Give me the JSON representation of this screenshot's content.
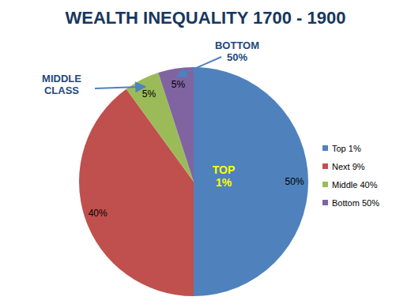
{
  "chart_data": {
    "type": "pie",
    "title": "WEALTH INEQUALITY 1700 - 1900",
    "categories": [
      "Top 1%",
      "Next 9%",
      "Middle 40%",
      "Bottom 50%"
    ],
    "values": [
      50,
      40,
      5,
      5
    ],
    "value_labels": [
      "50%",
      "40%",
      "5%",
      "5%"
    ],
    "colors": [
      "#4f81bd",
      "#c0504d",
      "#9bbb59",
      "#8064a2"
    ],
    "annotations": [
      "TOP 1%",
      "MIDDLE CLASS",
      "BOTTOM 50%"
    ],
    "data_labels": true,
    "legend": "right"
  }
}
